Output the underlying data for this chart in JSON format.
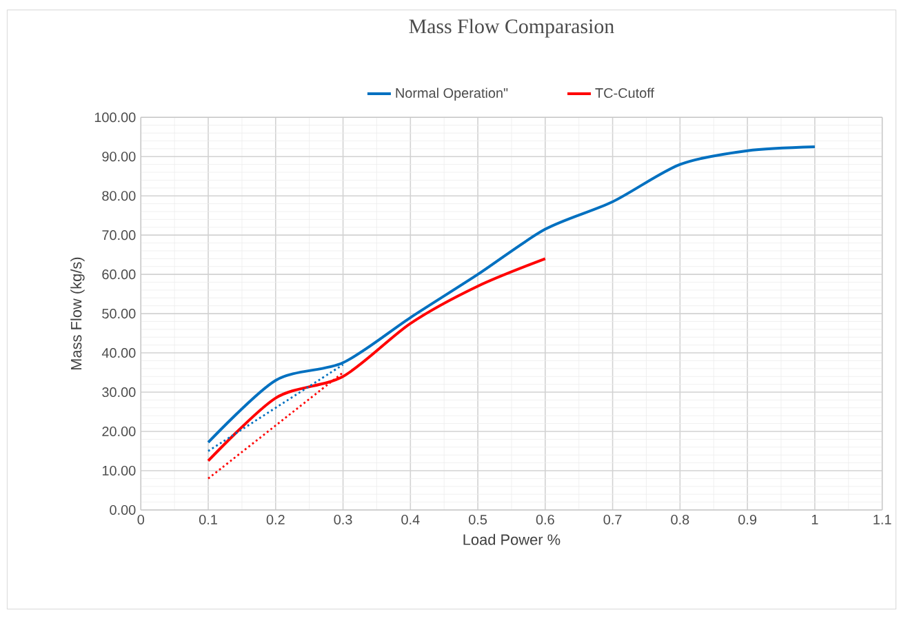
{
  "chart_data": {
    "type": "line",
    "title": "Mass Flow Comparasion",
    "xlabel": "Load Power %",
    "ylabel": "Mass Flow (kg/s)",
    "x": [
      0.1,
      0.2,
      0.3,
      0.4,
      0.5,
      0.6,
      0.7,
      0.8,
      0.9,
      1.0
    ],
    "series": [
      {
        "name": "Normal Operation\"",
        "color": "#0070c0",
        "values": [
          17.2,
          33,
          37.5,
          49,
          60,
          71.5,
          78.5,
          88,
          91.5,
          92.5
        ]
      },
      {
        "name": "TC-Cutoff",
        "color": "#ff0000",
        "x": [
          0.1,
          0.2,
          0.3,
          0.4,
          0.5,
          0.6
        ],
        "values": [
          12.5,
          28.5,
          34,
          47.5,
          57,
          64
        ]
      },
      {
        "color": "#0070c0",
        "x": [
          0.1,
          0.3
        ],
        "values": [
          15,
          37
        ],
        "line_style": "dotted"
      },
      {
        "color": "#ff0000",
        "x": [
          0.1,
          0.3
        ],
        "values": [
          8,
          35
        ],
        "line_style": "dotted"
      }
    ],
    "xlim": [
      0,
      1.1
    ],
    "xticks": [
      0,
      0.1,
      0.2,
      0.3,
      0.4,
      0.5,
      0.6,
      0.7,
      0.8,
      0.9,
      1,
      1.1
    ],
    "ylim": [
      0,
      100
    ],
    "yticks": [
      {
        "value": 0,
        "label": "0.00"
      },
      {
        "value": 10,
        "label": "10.00"
      },
      {
        "value": 20,
        "label": "20.00"
      },
      {
        "value": 30,
        "label": "30.00"
      },
      {
        "value": 40,
        "label": "40.00"
      },
      {
        "value": 50,
        "label": "50.00"
      },
      {
        "value": 60,
        "label": "60.00"
      },
      {
        "value": 70,
        "label": "70.00"
      },
      {
        "value": 80,
        "label": "80.00"
      },
      {
        "value": 90,
        "label": "90.00"
      },
      {
        "value": 100,
        "label": "100.00"
      }
    ],
    "grid": true,
    "legend": "top",
    "line_style": "solid",
    "marker": "none"
  }
}
